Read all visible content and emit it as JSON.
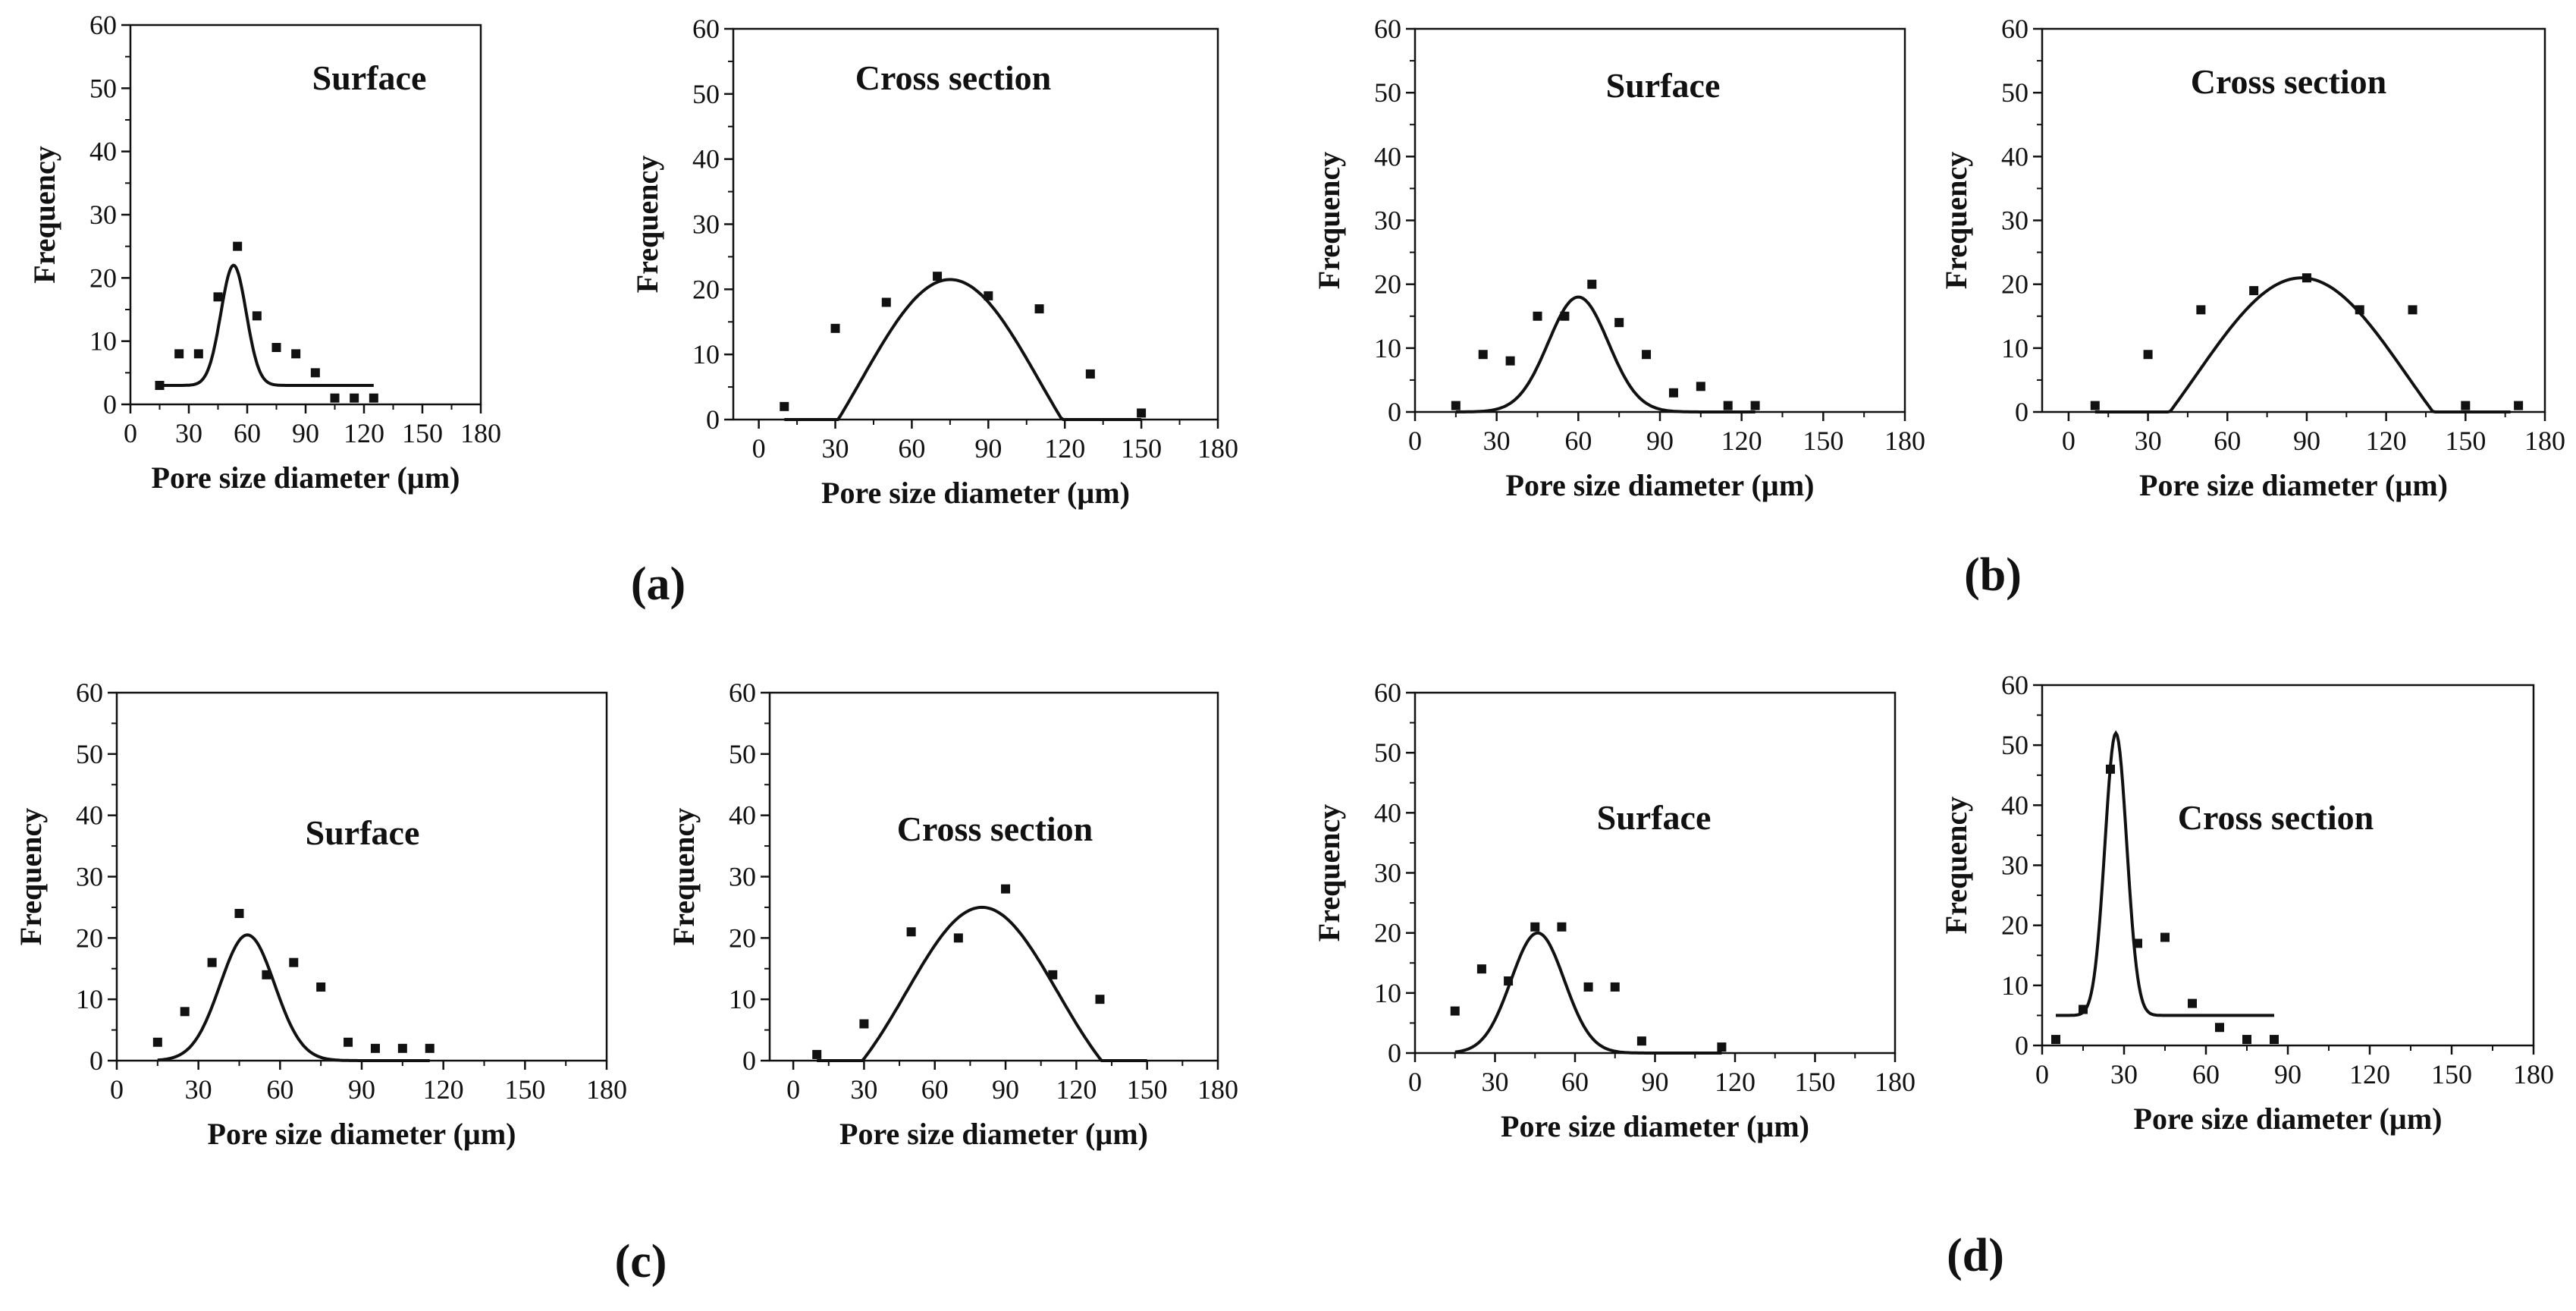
{
  "figure": {
    "panel_labels": [
      "(a)",
      "(b)",
      "(c)",
      "(d)"
    ]
  },
  "chart_data": [
    {
      "type": "scatter",
      "panel": "(a)",
      "title": "Surface",
      "xlabel": "Pore size diameter (µm)",
      "ylabel": "Frequency",
      "xlim": [
        0,
        180
      ],
      "ylim": [
        0,
        60
      ],
      "xticks": [
        0,
        30,
        60,
        90,
        120,
        150,
        180
      ],
      "yticks": [
        0,
        10,
        20,
        30,
        40,
        50,
        60
      ],
      "points": [
        [
          15,
          3
        ],
        [
          25,
          8
        ],
        [
          35,
          8
        ],
        [
          45,
          17
        ],
        [
          55,
          25
        ],
        [
          65,
          14
        ],
        [
          75,
          9
        ],
        [
          85,
          8
        ],
        [
          95,
          5
        ],
        [
          105,
          1
        ],
        [
          115,
          1
        ],
        [
          125,
          1
        ]
      ],
      "fit": {
        "kind": "gaussian",
        "y0": 3,
        "A": 19,
        "xc": 53,
        "w": 13,
        "xrange": [
          15,
          125
        ]
      }
    },
    {
      "type": "scatter",
      "panel": "(a)",
      "title": "Cross section",
      "xlabel": "Pore size diameter (µm)",
      "ylabel": "Frequency",
      "xlim": [
        -10,
        180
      ],
      "ylim": [
        0,
        60
      ],
      "xticks": [
        0,
        30,
        60,
        90,
        120,
        150,
        180
      ],
      "yticks": [
        0,
        10,
        20,
        30,
        40,
        50,
        60
      ],
      "points": [
        [
          10,
          2
        ],
        [
          30,
          14
        ],
        [
          50,
          18
        ],
        [
          70,
          22
        ],
        [
          90,
          19
        ],
        [
          110,
          17
        ],
        [
          130,
          7
        ],
        [
          150,
          1
        ]
      ],
      "fit": {
        "kind": "gaussian",
        "y0": -18,
        "A": 39.5,
        "xc": 75,
        "w": 70,
        "xrange": [
          10,
          150
        ]
      }
    },
    {
      "type": "scatter",
      "panel": "(b)",
      "title": "Surface",
      "xlabel": "Pore size diameter (µm)",
      "ylabel": "Frequency",
      "xlim": [
        0,
        180
      ],
      "ylim": [
        0,
        60
      ],
      "xticks": [
        0,
        30,
        60,
        90,
        120,
        150,
        180
      ],
      "yticks": [
        0,
        10,
        20,
        30,
        40,
        50,
        60
      ],
      "points": [
        [
          15,
          1
        ],
        [
          25,
          9
        ],
        [
          35,
          8
        ],
        [
          45,
          15
        ],
        [
          55,
          15
        ],
        [
          65,
          20
        ],
        [
          75,
          14
        ],
        [
          85,
          9
        ],
        [
          95,
          3
        ],
        [
          105,
          4
        ],
        [
          115,
          1
        ],
        [
          125,
          1
        ]
      ],
      "fit": {
        "kind": "gaussian",
        "y0": 0,
        "A": 18,
        "xc": 60,
        "w": 22,
        "xrange": [
          15,
          125
        ]
      }
    },
    {
      "type": "scatter",
      "panel": "(b)",
      "title": "Cross section",
      "xlabel": "Pore size diameter (µm)",
      "ylabel": "Frequency",
      "xlim": [
        -10,
        180
      ],
      "ylim": [
        0,
        60
      ],
      "xticks": [
        0,
        30,
        60,
        90,
        120,
        150,
        180
      ],
      "yticks": [
        0,
        10,
        20,
        30,
        40,
        50,
        60
      ],
      "points": [
        [
          10,
          1
        ],
        [
          30,
          9
        ],
        [
          50,
          16
        ],
        [
          70,
          19
        ],
        [
          90,
          21
        ],
        [
          110,
          16
        ],
        [
          130,
          16
        ],
        [
          150,
          1
        ],
        [
          170,
          1
        ]
      ],
      "fit": {
        "kind": "gaussian",
        "y0": -18,
        "A": 39,
        "xc": 88,
        "w": 80,
        "xrange": [
          10,
          167
        ]
      }
    },
    {
      "type": "scatter",
      "panel": "(c)",
      "title": "Surface",
      "xlabel": "Pore size diameter (µm)",
      "ylabel": "Frequency",
      "xlim": [
        0,
        180
      ],
      "ylim": [
        0,
        60
      ],
      "xticks": [
        0,
        30,
        60,
        90,
        120,
        150,
        180
      ],
      "yticks": [
        0,
        10,
        20,
        30,
        40,
        50,
        60
      ],
      "points": [
        [
          15,
          3
        ],
        [
          25,
          8
        ],
        [
          35,
          16
        ],
        [
          45,
          24
        ],
        [
          55,
          14
        ],
        [
          65,
          16
        ],
        [
          75,
          12
        ],
        [
          85,
          3
        ],
        [
          95,
          2
        ],
        [
          105,
          2
        ],
        [
          115,
          2
        ]
      ],
      "fit": {
        "kind": "gaussian",
        "y0": 0,
        "A": 20.5,
        "xc": 48,
        "w": 20,
        "xrange": [
          15,
          115
        ]
      }
    },
    {
      "type": "scatter",
      "panel": "(c)",
      "title": "Cross section",
      "xlabel": "Pore size diameter (µm)",
      "ylabel": "Frequency",
      "xlim": [
        -10,
        180
      ],
      "ylim": [
        0,
        60
      ],
      "xticks": [
        0,
        30,
        60,
        90,
        120,
        150,
        180
      ],
      "yticks": [
        0,
        10,
        20,
        30,
        40,
        50,
        60
      ],
      "points": [
        [
          10,
          1
        ],
        [
          30,
          6
        ],
        [
          50,
          21
        ],
        [
          70,
          20
        ],
        [
          90,
          28
        ],
        [
          110,
          14
        ],
        [
          130,
          10
        ]
      ],
      "fit": {
        "kind": "gaussian",
        "y0": -10,
        "A": 35,
        "xc": 80,
        "w": 64,
        "xrange": [
          10,
          150
        ]
      }
    },
    {
      "type": "scatter",
      "panel": "(d)",
      "title": "Surface",
      "xlabel": "Pore size diameter (µm)",
      "ylabel": "Frequency",
      "xlim": [
        0,
        180
      ],
      "ylim": [
        0,
        60
      ],
      "xticks": [
        0,
        30,
        60,
        90,
        120,
        150,
        180
      ],
      "yticks": [
        0,
        10,
        20,
        30,
        40,
        50,
        60
      ],
      "points": [
        [
          15,
          7
        ],
        [
          25,
          14
        ],
        [
          35,
          12
        ],
        [
          45,
          21
        ],
        [
          55,
          21
        ],
        [
          65,
          11
        ],
        [
          75,
          11
        ],
        [
          85,
          2
        ],
        [
          115,
          1
        ]
      ],
      "fit": {
        "kind": "gaussian",
        "y0": 0,
        "A": 20,
        "xc": 46,
        "w": 20,
        "xrange": [
          15,
          115
        ]
      }
    },
    {
      "type": "scatter",
      "panel": "(d)",
      "title": "Cross section",
      "xlabel": "Pore size diameter (µm)",
      "ylabel": "Frequency",
      "xlim": [
        0,
        180
      ],
      "ylim": [
        0,
        60
      ],
      "xticks": [
        0,
        30,
        60,
        90,
        120,
        150,
        180
      ],
      "yticks": [
        0,
        10,
        20,
        30,
        40,
        50,
        60
      ],
      "points": [
        [
          5,
          1
        ],
        [
          15,
          6
        ],
        [
          25,
          46
        ],
        [
          35,
          17
        ],
        [
          45,
          18
        ],
        [
          55,
          7
        ],
        [
          65,
          3
        ],
        [
          75,
          1
        ],
        [
          85,
          1
        ]
      ],
      "fit": {
        "kind": "gaussian",
        "y0": 5,
        "A": 47,
        "xc": 27,
        "w": 8,
        "xrange": [
          5,
          85
        ]
      }
    }
  ]
}
